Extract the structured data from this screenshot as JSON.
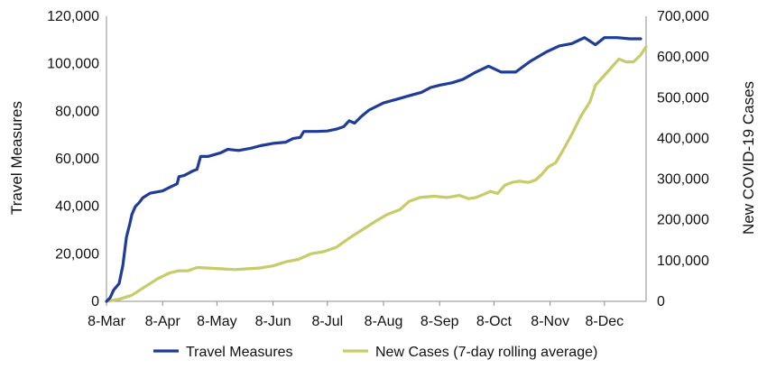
{
  "chart_data": {
    "type": "line",
    "title": "",
    "xlabel": "",
    "ylabel": "Travel Measures",
    "y2label": "New COVID-19 Cases",
    "xlim": [
      "2020-03-08",
      "2020-12-31"
    ],
    "x_ticks": [
      {
        "date": "2020-03-08",
        "label": "8-Mar"
      },
      {
        "date": "2020-04-08",
        "label": "8-Apr"
      },
      {
        "date": "2020-05-08",
        "label": "8-May"
      },
      {
        "date": "2020-06-08",
        "label": "8-Jun"
      },
      {
        "date": "2020-07-08",
        "label": "8-Jul"
      },
      {
        "date": "2020-08-08",
        "label": "8-Aug"
      },
      {
        "date": "2020-09-08",
        "label": "8-Sep"
      },
      {
        "date": "2020-10-08",
        "label": "8-Oct"
      },
      {
        "date": "2020-11-08",
        "label": "8-Nov"
      },
      {
        "date": "2020-12-08",
        "label": "8-Dec"
      }
    ],
    "ylim": [
      0,
      120000
    ],
    "y_ticks": [
      {
        "value": 0,
        "label": "0"
      },
      {
        "value": 20000,
        "label": "20,000"
      },
      {
        "value": 40000,
        "label": "40,000"
      },
      {
        "value": 60000,
        "label": "60,000"
      },
      {
        "value": 80000,
        "label": "80,000"
      },
      {
        "value": 100000,
        "label": "100,000"
      },
      {
        "value": 120000,
        "label": "120,000"
      }
    ],
    "y2lim": [
      0,
      700000
    ],
    "y2_ticks": [
      {
        "value": 0,
        "label": "0"
      },
      {
        "value": 100000,
        "label": "100,000"
      },
      {
        "value": 200000,
        "label": "200,000"
      },
      {
        "value": 300000,
        "label": "300,000"
      },
      {
        "value": 400000,
        "label": "400,000"
      },
      {
        "value": 500000,
        "label": "500,000"
      },
      {
        "value": 600000,
        "label": "600,000"
      },
      {
        "value": 700000,
        "label": "700,000"
      }
    ],
    "grid": false,
    "legend_position": "bottom",
    "series": [
      {
        "name": "Travel Measures",
        "axis": "left",
        "color": "#1f3c99",
        "points": [
          [
            "2020-03-08",
            0
          ],
          [
            "2020-03-10",
            1500
          ],
          [
            "2020-03-12",
            4800
          ],
          [
            "2020-03-15",
            7500
          ],
          [
            "2020-03-17",
            15000
          ],
          [
            "2020-03-19",
            27000
          ],
          [
            "2020-03-21",
            33000
          ],
          [
            "2020-03-22",
            36500
          ],
          [
            "2020-03-24",
            40000
          ],
          [
            "2020-03-26",
            41500
          ],
          [
            "2020-03-28",
            43500
          ],
          [
            "2020-04-01",
            45500
          ],
          [
            "2020-04-08",
            46500
          ],
          [
            "2020-04-12",
            48000
          ],
          [
            "2020-04-16",
            49500
          ],
          [
            "2020-04-17",
            52500
          ],
          [
            "2020-04-20",
            53000
          ],
          [
            "2020-04-25",
            55000
          ],
          [
            "2020-04-27",
            55500
          ],
          [
            "2020-04-29",
            61000
          ],
          [
            "2020-05-03",
            61000
          ],
          [
            "2020-05-10",
            62500
          ],
          [
            "2020-05-14",
            64000
          ],
          [
            "2020-05-20",
            63500
          ],
          [
            "2020-05-27",
            64500
          ],
          [
            "2020-06-01",
            65500
          ],
          [
            "2020-06-08",
            66500
          ],
          [
            "2020-06-15",
            67000
          ],
          [
            "2020-06-19",
            68500
          ],
          [
            "2020-06-23",
            69000
          ],
          [
            "2020-06-25",
            71500
          ],
          [
            "2020-07-02",
            71500
          ],
          [
            "2020-07-08",
            71700
          ],
          [
            "2020-07-13",
            72500
          ],
          [
            "2020-07-17",
            73500
          ],
          [
            "2020-07-20",
            76000
          ],
          [
            "2020-07-23",
            75000
          ],
          [
            "2020-07-27",
            78000
          ],
          [
            "2020-07-31",
            80500
          ],
          [
            "2020-08-08",
            83500
          ],
          [
            "2020-08-15",
            85000
          ],
          [
            "2020-08-22",
            86500
          ],
          [
            "2020-08-29",
            88000
          ],
          [
            "2020-09-03",
            90000
          ],
          [
            "2020-09-08",
            91000
          ],
          [
            "2020-09-15",
            92000
          ],
          [
            "2020-09-21",
            93500
          ],
          [
            "2020-09-28",
            96500
          ],
          [
            "2020-10-05",
            99000
          ],
          [
            "2020-10-12",
            96500
          ],
          [
            "2020-10-20",
            96500
          ],
          [
            "2020-10-28",
            101000
          ],
          [
            "2020-11-06",
            105000
          ],
          [
            "2020-11-13",
            107500
          ],
          [
            "2020-11-20",
            108500
          ],
          [
            "2020-11-27",
            111000
          ],
          [
            "2020-12-03",
            108000
          ],
          [
            "2020-12-08",
            111000
          ],
          [
            "2020-12-15",
            111000
          ],
          [
            "2020-12-22",
            110500
          ],
          [
            "2020-12-28",
            110500
          ]
        ]
      },
      {
        "name": "New Cases (7-day rolling average)",
        "axis": "right",
        "color": "#c5cc68",
        "points": [
          [
            "2020-03-08",
            0
          ],
          [
            "2020-03-15",
            5000
          ],
          [
            "2020-03-22",
            15000
          ],
          [
            "2020-03-29",
            35000
          ],
          [
            "2020-04-05",
            55000
          ],
          [
            "2020-04-12",
            70000
          ],
          [
            "2020-04-17",
            75000
          ],
          [
            "2020-04-22",
            75000
          ],
          [
            "2020-04-27",
            83000
          ],
          [
            "2020-05-02",
            82000
          ],
          [
            "2020-05-10",
            80000
          ],
          [
            "2020-05-18",
            78000
          ],
          [
            "2020-05-25",
            80000
          ],
          [
            "2020-06-01",
            82000
          ],
          [
            "2020-06-08",
            87000
          ],
          [
            "2020-06-15",
            97000
          ],
          [
            "2020-06-22",
            103000
          ],
          [
            "2020-06-29",
            117000
          ],
          [
            "2020-07-06",
            122000
          ],
          [
            "2020-07-13",
            133000
          ],
          [
            "2020-07-20",
            155000
          ],
          [
            "2020-07-27",
            175000
          ],
          [
            "2020-08-03",
            195000
          ],
          [
            "2020-08-10",
            213000
          ],
          [
            "2020-08-17",
            225000
          ],
          [
            "2020-08-22",
            245000
          ],
          [
            "2020-08-28",
            255000
          ],
          [
            "2020-09-05",
            258000
          ],
          [
            "2020-09-12",
            255000
          ],
          [
            "2020-09-19",
            260000
          ],
          [
            "2020-09-24",
            252000
          ],
          [
            "2020-09-28",
            255000
          ],
          [
            "2020-10-02",
            262000
          ],
          [
            "2020-10-06",
            270000
          ],
          [
            "2020-10-10",
            265000
          ],
          [
            "2020-10-14",
            285000
          ],
          [
            "2020-10-18",
            292000
          ],
          [
            "2020-10-22",
            295000
          ],
          [
            "2020-10-27",
            292000
          ],
          [
            "2020-10-31",
            298000
          ],
          [
            "2020-11-03",
            310000
          ],
          [
            "2020-11-07",
            330000
          ],
          [
            "2020-11-11",
            340000
          ],
          [
            "2020-11-15",
            370000
          ],
          [
            "2020-11-20",
            410000
          ],
          [
            "2020-11-25",
            455000
          ],
          [
            "2020-11-30",
            490000
          ],
          [
            "2020-12-03",
            530000
          ],
          [
            "2020-12-08",
            555000
          ],
          [
            "2020-12-12",
            575000
          ],
          [
            "2020-12-16",
            595000
          ],
          [
            "2020-12-20",
            588000
          ],
          [
            "2020-12-24",
            588000
          ],
          [
            "2020-12-28",
            605000
          ],
          [
            "2020-12-31",
            625000
          ]
        ]
      }
    ]
  }
}
